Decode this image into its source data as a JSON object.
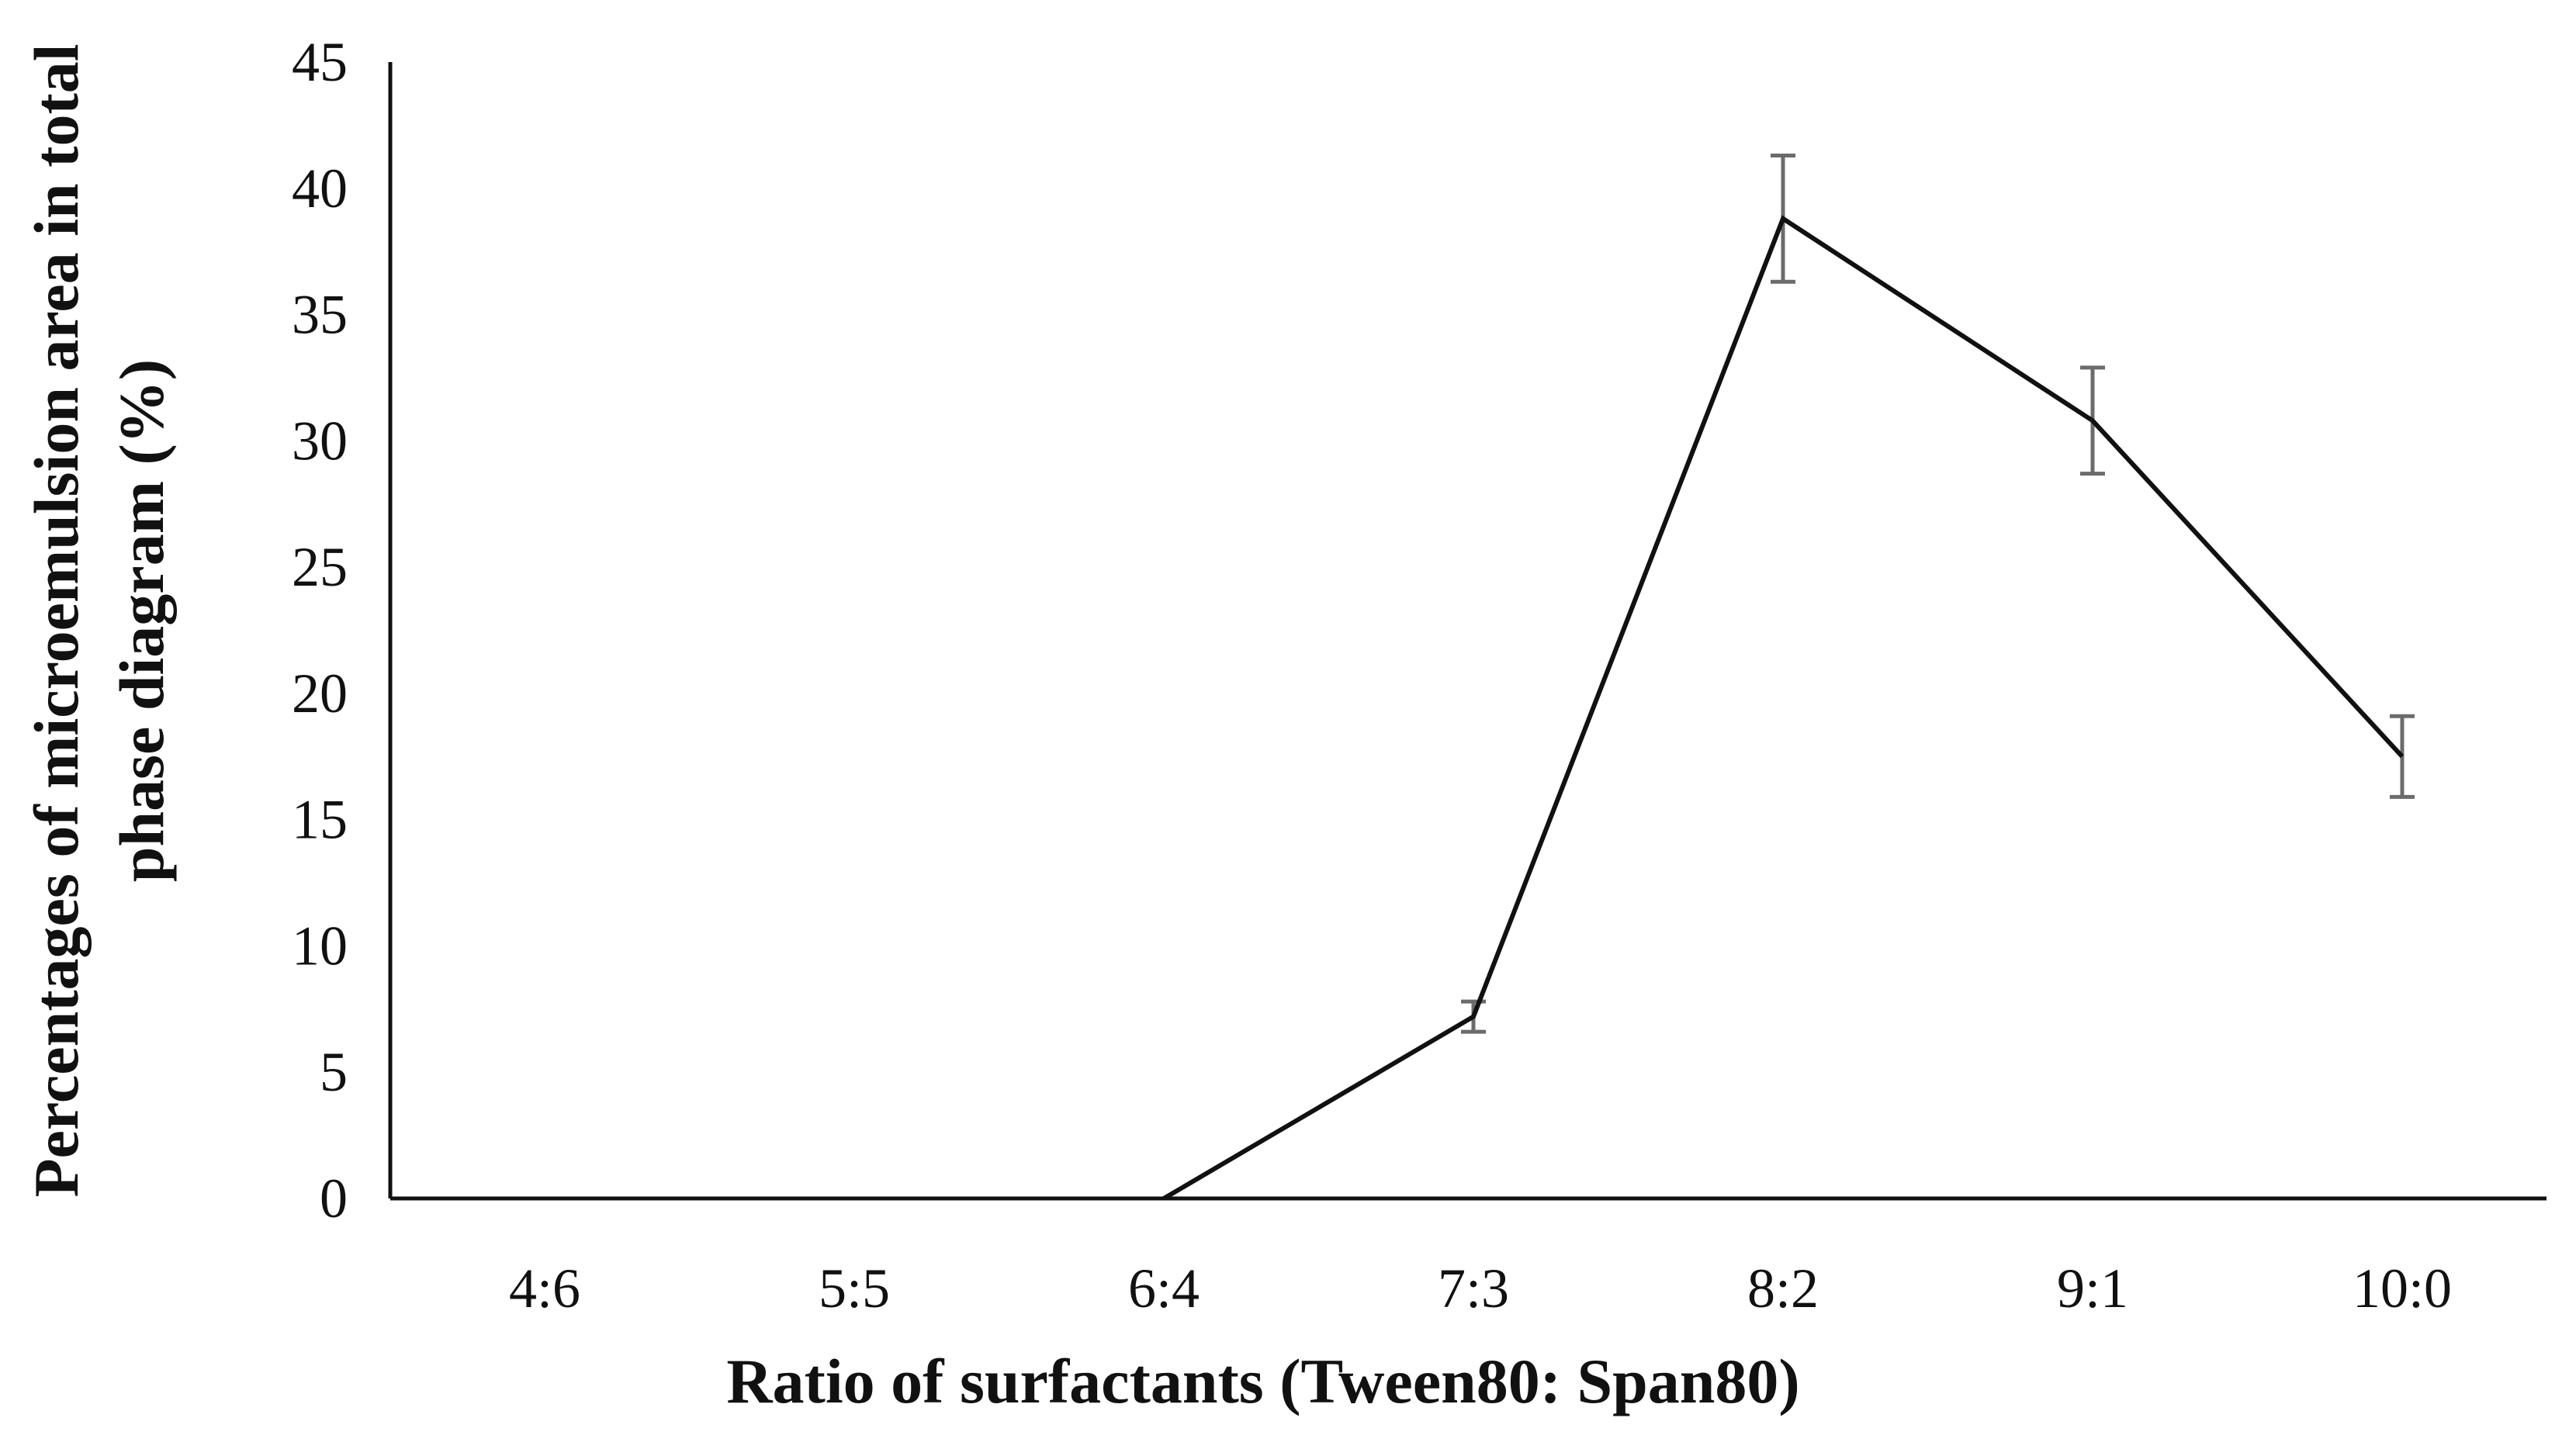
{
  "chart_data": {
    "type": "line",
    "title": "",
    "xlabel": "Ratio of surfactants (Tween80: Span80)",
    "ylabel_lines": [
      "Percentages of microemulsion area in total",
      "phase diagram  (%)"
    ],
    "categories": [
      "4:6",
      "5:5",
      "6:4",
      "7:3",
      "8:2",
      "9:1",
      "10:0"
    ],
    "series": [
      {
        "values": [
          0,
          0,
          0,
          7.2,
          38.8,
          30.8,
          17.5
        ],
        "errors": [
          0,
          0,
          0,
          0.6,
          2.5,
          2.1,
          1.6
        ]
      }
    ],
    "ylim": [
      0,
      45
    ],
    "yticks": [
      "0",
      "5",
      "10",
      "15",
      "20",
      "25",
      "30",
      "35",
      "40",
      "45"
    ],
    "grid": false,
    "legend": "none",
    "colors": {
      "line": "#111111",
      "error_bar": "#6b6b6b",
      "axis": "#111111"
    }
  }
}
